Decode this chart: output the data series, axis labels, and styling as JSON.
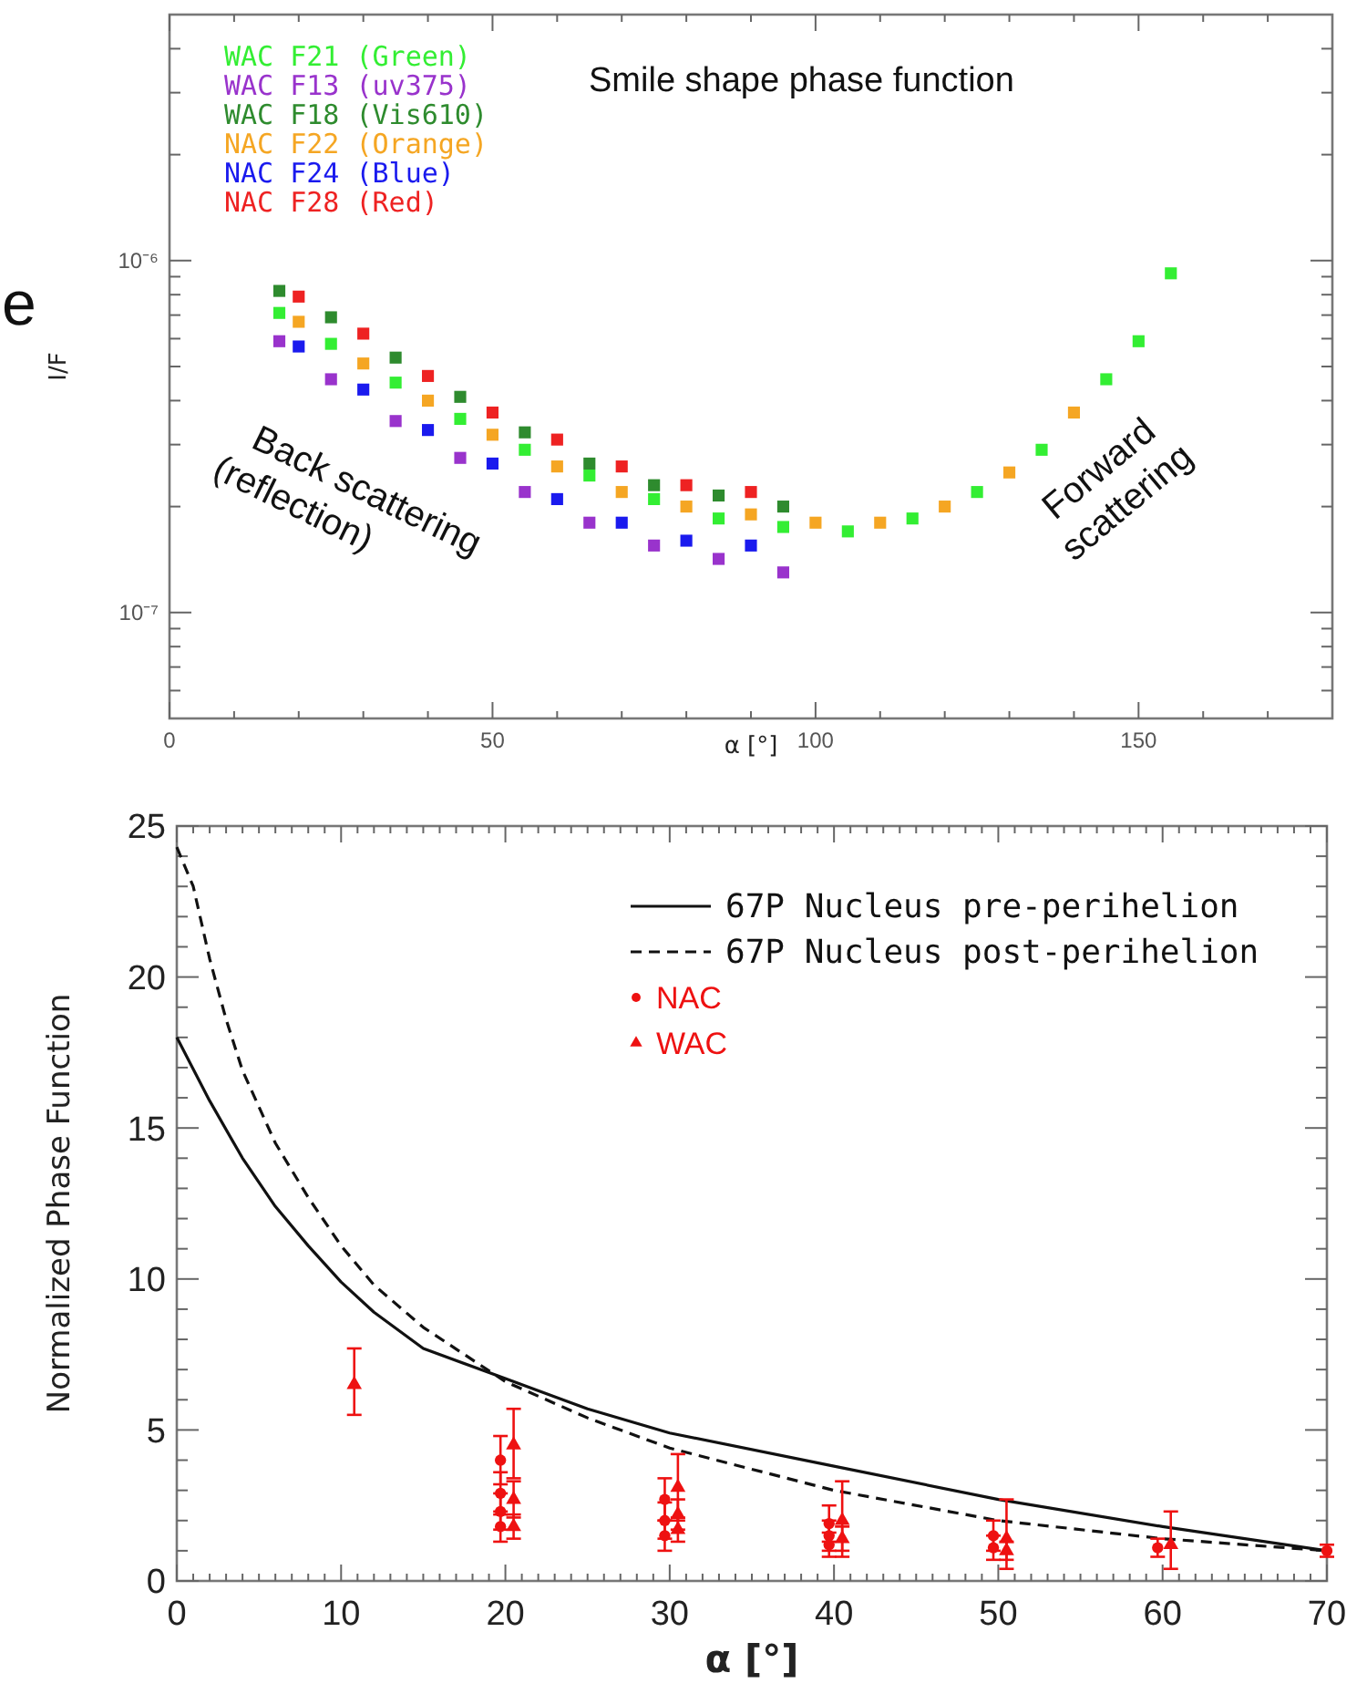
{
  "chart_data": [
    {
      "type": "scatter",
      "xlabel": "α [°]",
      "ylabel": "I/F",
      "log": "y",
      "marker": "square",
      "legend": "top left",
      "xlim": [
        0,
        180
      ],
      "ylim": [
        5e-08,
        5e-06
      ],
      "xticks": [
        0,
        {
          "value": 10,
          "label": null
        },
        {
          "value": 20,
          "label": null
        },
        {
          "value": 30,
          "label": null
        },
        {
          "value": 40,
          "label": null
        },
        50,
        {
          "value": 60,
          "label": null
        },
        {
          "value": 70,
          "label": null
        },
        {
          "value": 80,
          "label": null
        },
        {
          "value": 90,
          "label": null
        },
        100,
        {
          "value": 110,
          "label": null
        },
        {
          "value": 120,
          "label": null
        },
        {
          "value": 130,
          "label": null
        },
        {
          "value": 140,
          "label": null
        },
        150,
        {
          "value": 160,
          "label": null
        },
        {
          "value": 170,
          "label": null
        }
      ],
      "yticks": [
        {
          "value": 6e-08,
          "label": null
        },
        {
          "value": 7e-08,
          "label": null
        },
        {
          "value": 8e-08,
          "label": null
        },
        {
          "value": 9e-08,
          "label": null
        },
        {
          "value": 1e-07,
          "label": "10⁻⁷"
        },
        {
          "value": 2e-07,
          "label": null
        },
        {
          "value": 3e-07,
          "label": null
        },
        {
          "value": 4e-07,
          "label": null
        },
        {
          "value": 5e-07,
          "label": null
        },
        {
          "value": 6e-07,
          "label": null
        },
        {
          "value": 7e-07,
          "label": null
        },
        {
          "value": 8e-07,
          "label": null
        },
        {
          "value": 9e-07,
          "label": null
        },
        {
          "value": 1e-06,
          "label": "10⁻⁶"
        },
        {
          "value": 2e-06,
          "label": null
        },
        {
          "value": 3e-06,
          "label": null
        },
        {
          "value": 4e-06,
          "label": null
        }
      ],
      "series": [
        {
          "name": "WAC F21 (Green)",
          "color": "#33ee33",
          "x": [
            17,
            25,
            35,
            45,
            55,
            65,
            75,
            85,
            95,
            105,
            115,
            125,
            135,
            145,
            150,
            155
          ],
          "values": [
            7.1e-07,
            5.8e-07,
            4.5e-07,
            3.55e-07,
            2.9e-07,
            2.45e-07,
            2.1e-07,
            1.85e-07,
            1.75e-07,
            1.7e-07,
            1.85e-07,
            2.2e-07,
            2.9e-07,
            4.6e-07,
            5.9e-07,
            9.2e-07
          ]
        },
        {
          "name": "WAC F13 (uv375)",
          "color": "#9933cc",
          "x": [
            17,
            25,
            35,
            45,
            55,
            65,
            75,
            85,
            95
          ],
          "values": [
            5.9e-07,
            4.6e-07,
            3.5e-07,
            2.75e-07,
            2.2e-07,
            1.8e-07,
            1.55e-07,
            1.42e-07,
            1.3e-07
          ]
        },
        {
          "name": "WAC F18 (Vis610)",
          "color": "#2e8b2e",
          "x": [
            17,
            25,
            35,
            45,
            55,
            65,
            75,
            85,
            95
          ],
          "values": [
            8.2e-07,
            6.9e-07,
            5.3e-07,
            4.1e-07,
            3.25e-07,
            2.65e-07,
            2.3e-07,
            2.15e-07,
            2e-07
          ]
        },
        {
          "name": "NAC F22 (Orange)",
          "color": "#f5a623",
          "x": [
            20,
            30,
            40,
            50,
            60,
            70,
            80,
            90,
            100,
            110,
            120,
            130,
            140
          ],
          "values": [
            6.7e-07,
            5.1e-07,
            4e-07,
            3.2e-07,
            2.6e-07,
            2.2e-07,
            2e-07,
            1.9e-07,
            1.8e-07,
            1.8e-07,
            2e-07,
            2.5e-07,
            3.7e-07
          ]
        },
        {
          "name": "NAC F24 (Blue)",
          "color": "#1a1aee",
          "x": [
            20,
            30,
            40,
            50,
            60,
            70,
            80,
            90
          ],
          "values": [
            5.7e-07,
            4.3e-07,
            3.3e-07,
            2.65e-07,
            2.1e-07,
            1.8e-07,
            1.6e-07,
            1.55e-07
          ]
        },
        {
          "name": "NAC F28 (Red)",
          "color": "#ee2222",
          "x": [
            20,
            30,
            40,
            50,
            60,
            70,
            80,
            90
          ],
          "values": [
            7.9e-07,
            6.2e-07,
            4.7e-07,
            3.7e-07,
            3.1e-07,
            2.6e-07,
            2.3e-07,
            2.2e-07
          ]
        }
      ],
      "annotations": [
        "Smile shape phase function",
        "Back scattering\n(reflection)",
        "Forward\nscattering",
        "e"
      ]
    },
    {
      "type": "line",
      "xlabel": "α [°]",
      "ylabel": "Normalized Phase Function",
      "legend": "top right",
      "xlim": [
        0,
        70
      ],
      "ylim": [
        0,
        25
      ],
      "xticks": [
        0,
        {
          "value": 1,
          "label": null
        },
        {
          "value": 2,
          "label": null
        },
        {
          "value": 3,
          "label": null
        },
        {
          "value": 4,
          "label": null
        },
        {
          "value": 5,
          "label": null
        },
        {
          "value": 6,
          "label": null
        },
        {
          "value": 7,
          "label": null
        },
        {
          "value": 8,
          "label": null
        },
        {
          "value": 9,
          "label": null
        },
        10,
        {
          "value": 11,
          "label": null
        },
        {
          "value": 12,
          "label": null
        },
        {
          "value": 13,
          "label": null
        },
        {
          "value": 14,
          "label": null
        },
        {
          "value": 15,
          "label": null
        },
        {
          "value": 16,
          "label": null
        },
        {
          "value": 17,
          "label": null
        },
        {
          "value": 18,
          "label": null
        },
        {
          "value": 19,
          "label": null
        },
        20,
        {
          "value": 21,
          "label": null
        },
        {
          "value": 22,
          "label": null
        },
        {
          "value": 23,
          "label": null
        },
        {
          "value": 24,
          "label": null
        },
        {
          "value": 25,
          "label": null
        },
        {
          "value": 26,
          "label": null
        },
        {
          "value": 27,
          "label": null
        },
        {
          "value": 28,
          "label": null
        },
        {
          "value": 29,
          "label": null
        },
        30,
        {
          "value": 31,
          "label": null
        },
        {
          "value": 32,
          "label": null
        },
        {
          "value": 33,
          "label": null
        },
        {
          "value": 34,
          "label": null
        },
        {
          "value": 35,
          "label": null
        },
        {
          "value": 36,
          "label": null
        },
        {
          "value": 37,
          "label": null
        },
        {
          "value": 38,
          "label": null
        },
        {
          "value": 39,
          "label": null
        },
        40,
        {
          "value": 41,
          "label": null
        },
        {
          "value": 42,
          "label": null
        },
        {
          "value": 43,
          "label": null
        },
        {
          "value": 44,
          "label": null
        },
        {
          "value": 45,
          "label": null
        },
        {
          "value": 46,
          "label": null
        },
        {
          "value": 47,
          "label": null
        },
        {
          "value": 48,
          "label": null
        },
        {
          "value": 49,
          "label": null
        },
        50,
        {
          "value": 51,
          "label": null
        },
        {
          "value": 52,
          "label": null
        },
        {
          "value": 53,
          "label": null
        },
        {
          "value": 54,
          "label": null
        },
        {
          "value": 55,
          "label": null
        },
        {
          "value": 56,
          "label": null
        },
        {
          "value": 57,
          "label": null
        },
        {
          "value": 58,
          "label": null
        },
        {
          "value": 59,
          "label": null
        },
        60,
        {
          "value": 61,
          "label": null
        },
        {
          "value": 62,
          "label": null
        },
        {
          "value": 63,
          "label": null
        },
        {
          "value": 64,
          "label": null
        },
        {
          "value": 65,
          "label": null
        },
        {
          "value": 66,
          "label": null
        },
        {
          "value": 67,
          "label": null
        },
        {
          "value": 68,
          "label": null
        },
        {
          "value": 69,
          "label": null
        },
        70
      ],
      "yticks": [
        0,
        {
          "value": 1,
          "label": null
        },
        {
          "value": 2,
          "label": null
        },
        {
          "value": 3,
          "label": null
        },
        {
          "value": 4,
          "label": null
        },
        5,
        {
          "value": 6,
          "label": null
        },
        {
          "value": 7,
          "label": null
        },
        {
          "value": 8,
          "label": null
        },
        {
          "value": 9,
          "label": null
        },
        10,
        {
          "value": 11,
          "label": null
        },
        {
          "value": 12,
          "label": null
        },
        {
          "value": 13,
          "label": null
        },
        {
          "value": 14,
          "label": null
        },
        15,
        {
          "value": 16,
          "label": null
        },
        {
          "value": 17,
          "label": null
        },
        {
          "value": 18,
          "label": null
        },
        {
          "value": 19,
          "label": null
        },
        20,
        {
          "value": 21,
          "label": null
        },
        {
          "value": 22,
          "label": null
        },
        {
          "value": 23,
          "label": null
        },
        {
          "value": 24,
          "label": null
        },
        25
      ],
      "series": [
        {
          "name": "67P Nucleus pre-perihelion",
          "color": "#111111",
          "line_style": "solid",
          "marker": "none",
          "x": [
            0,
            2,
            4,
            6,
            8,
            10,
            12,
            15,
            20,
            25,
            30,
            40,
            50,
            60,
            70
          ],
          "values": [
            18.0,
            15.9,
            14.0,
            12.4,
            11.1,
            9.9,
            8.9,
            7.7,
            6.7,
            5.7,
            4.9,
            3.8,
            2.7,
            1.8,
            1.0
          ]
        },
        {
          "name": "67P Nucleus post-perihelion",
          "color": "#111111",
          "line_style": "dashed",
          "marker": "none",
          "x": [
            0,
            1,
            2,
            3,
            4,
            6,
            8,
            10,
            12,
            15,
            20,
            25,
            30,
            40,
            50,
            60,
            70
          ],
          "values": [
            24.3,
            23.0,
            20.6,
            18.6,
            16.9,
            14.5,
            12.7,
            11.1,
            9.8,
            8.4,
            6.6,
            5.4,
            4.4,
            3.0,
            2.0,
            1.4,
            1.0
          ]
        },
        {
          "name": "NAC",
          "type": "scatter",
          "marker": "circle",
          "color": "#ee1111",
          "x": [
            19.7,
            19.7,
            19.7,
            19.7,
            29.7,
            29.7,
            29.7,
            39.7,
            39.7,
            39.7,
            49.7,
            49.7,
            59.7,
            70
          ],
          "values": [
            4.0,
            2.9,
            2.3,
            1.8,
            2.7,
            2.0,
            1.5,
            1.9,
            1.5,
            1.2,
            1.5,
            1.1,
            1.1,
            1.0
          ],
          "errors": [
            [
              3.2,
              4.8
            ],
            [
              2.2,
              3.6
            ],
            [
              1.7,
              2.9
            ],
            [
              1.3,
              2.3
            ],
            [
              2.0,
              3.4
            ],
            [
              1.4,
              2.6
            ],
            [
              1.0,
              2.0
            ],
            [
              1.3,
              2.5
            ],
            [
              1.0,
              2.0
            ],
            [
              0.8,
              1.6
            ],
            [
              1.0,
              2.0
            ],
            [
              0.7,
              1.5
            ],
            [
              0.8,
              1.4
            ],
            [
              0.8,
              1.2
            ]
          ]
        },
        {
          "name": "WAC",
          "type": "scatter",
          "marker": "triangle",
          "color": "#ee1111",
          "x": [
            10.8,
            20.5,
            20.5,
            20.5,
            30.5,
            30.5,
            30.5,
            40.5,
            40.5,
            50.5,
            50.5,
            60.5
          ],
          "values": [
            6.5,
            4.5,
            2.7,
            1.8,
            3.1,
            2.2,
            1.7,
            2.0,
            1.4,
            1.4,
            1.0,
            1.2
          ],
          "errors": [
            [
              5.5,
              7.7
            ],
            [
              3.4,
              5.7
            ],
            [
              2.1,
              3.3
            ],
            [
              1.4,
              2.2
            ],
            [
              2.0,
              4.2
            ],
            [
              1.7,
              2.7
            ],
            [
              1.3,
              2.1
            ],
            [
              0.8,
              3.3
            ],
            [
              1.0,
              1.8
            ],
            [
              0.4,
              2.7
            ],
            [
              0.7,
              1.3
            ],
            [
              0.4,
              2.3
            ]
          ]
        }
      ]
    }
  ]
}
